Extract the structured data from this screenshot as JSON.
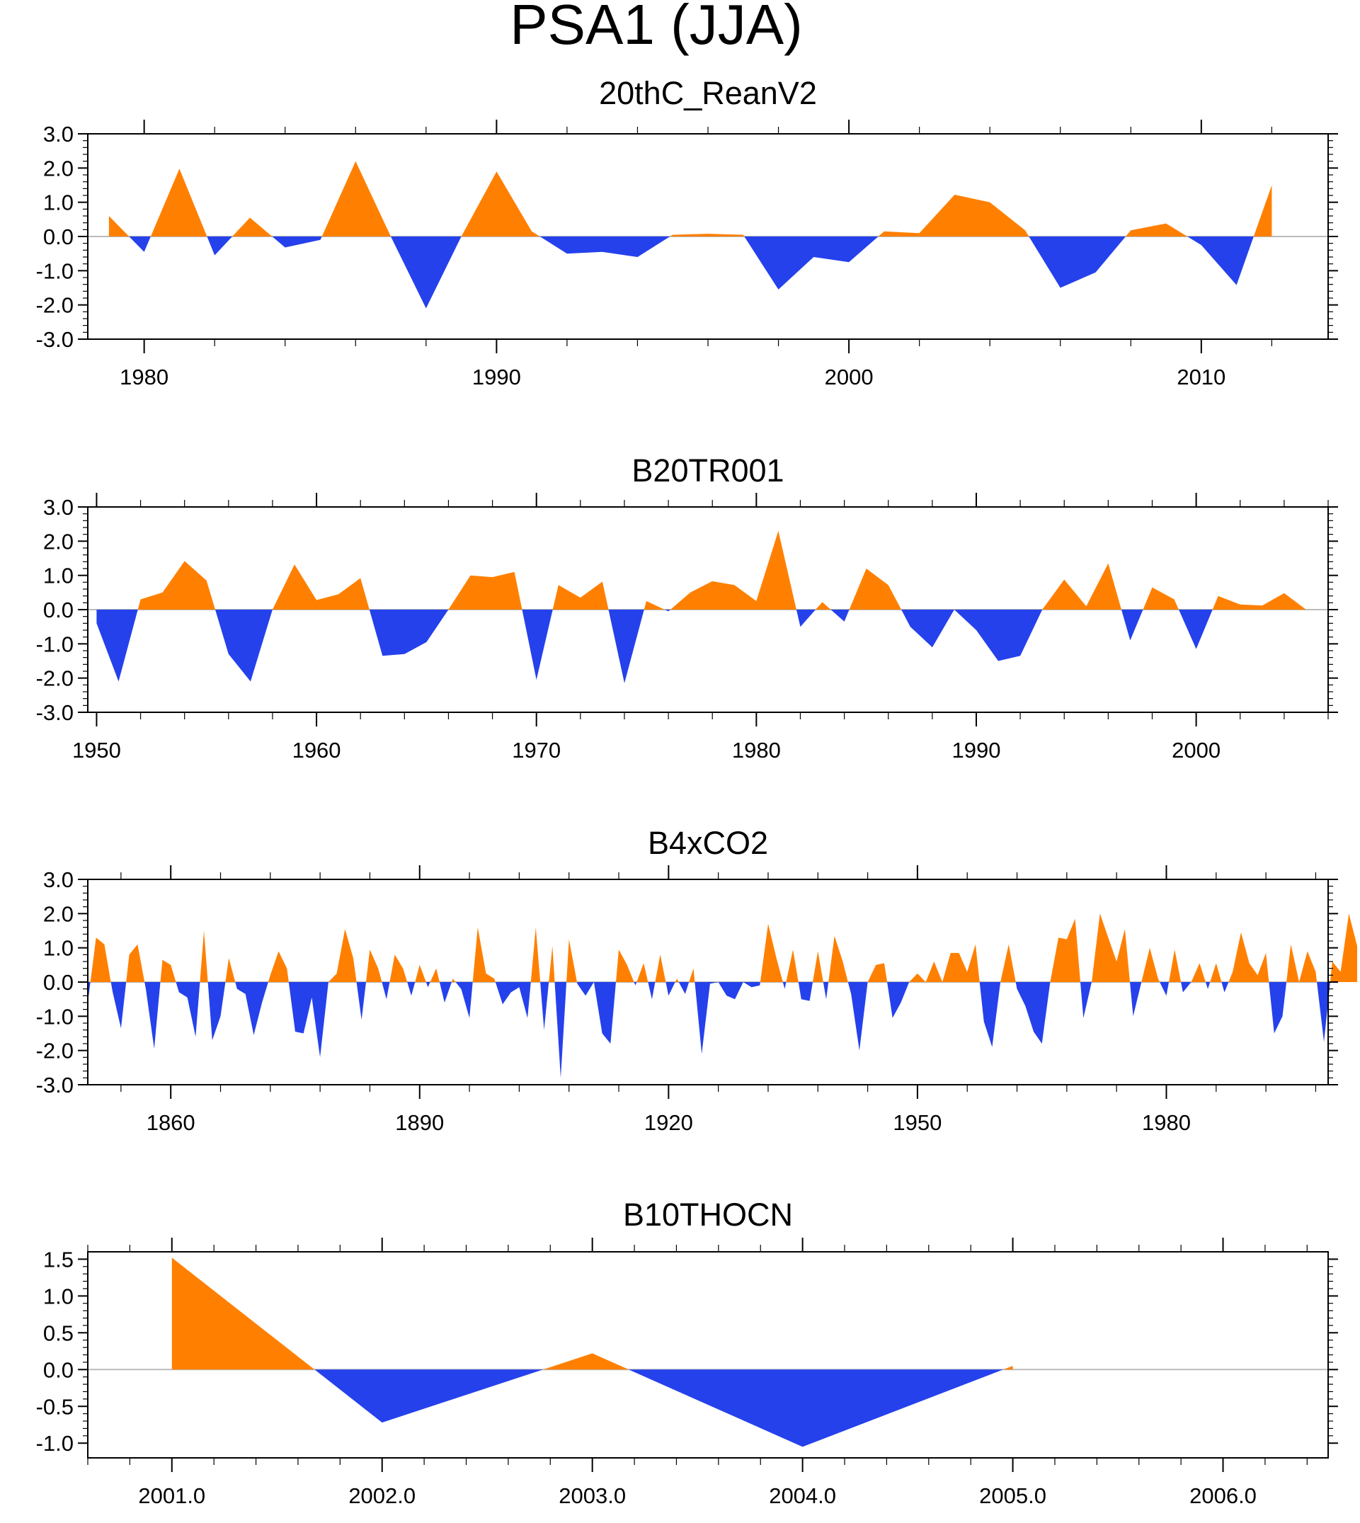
{
  "title": "PSA1 (JJA)",
  "colors": {
    "positive": "#FF8000",
    "negative": "#2541EC",
    "axis": "#000000",
    "zero_line": "#BBBBBB"
  },
  "chart_data": [
    {
      "type": "area",
      "title": "20thC_ReanV2",
      "xlim": [
        1978.4,
        2013.6
      ],
      "ylim": [
        -3.0,
        3.0
      ],
      "yticks": [
        3.0,
        2.0,
        1.0,
        0.0,
        -1.0,
        -2.0,
        -3.0
      ],
      "ytick_labels": [
        "3.0",
        "2.0",
        "1.0",
        "0.0",
        "-1.0",
        "-2.0",
        "-3.0"
      ],
      "xticks": [
        1980,
        1990,
        2000,
        2010
      ],
      "xtick_labels": [
        "1980",
        "1990",
        "2000",
        "2010"
      ],
      "x": [
        1979,
        1980,
        1981,
        1982,
        1983,
        1984,
        1985,
        1986,
        1987,
        1988,
        1989,
        1990,
        1991,
        1992,
        1993,
        1994,
        1995,
        1996,
        1997,
        1998,
        1999,
        2000,
        2001,
        2002,
        2003,
        2004,
        2005,
        2006,
        2007,
        2008,
        2009,
        2010,
        2011,
        2012
      ],
      "values": [
        0.6,
        -0.45,
        1.98,
        -0.55,
        0.55,
        -0.32,
        -0.1,
        2.2,
        0.0,
        -2.1,
        0.0,
        1.9,
        0.15,
        -0.5,
        -0.45,
        -0.6,
        0.05,
        0.08,
        0.05,
        -1.55,
        -0.6,
        -0.75,
        0.15,
        0.1,
        1.22,
        1.0,
        0.18,
        -1.5,
        -1.05,
        0.18,
        0.38,
        -0.25,
        -1.42,
        1.5
      ]
    },
    {
      "type": "area",
      "title": "B20TR001",
      "xlim": [
        1949.6,
        2006.0
      ],
      "ylim": [
        -3.0,
        3.0
      ],
      "yticks": [
        3.0,
        2.0,
        1.0,
        0.0,
        -1.0,
        -2.0,
        -3.0
      ],
      "ytick_labels": [
        "3.0",
        "2.0",
        "1.0",
        "0.0",
        "-1.0",
        "-2.0",
        "-3.0"
      ],
      "xticks": [
        1950,
        1960,
        1970,
        1980,
        1990,
        2000
      ],
      "xtick_labels": [
        "1950",
        "1960",
        "1970",
        "1980",
        "1990",
        "2000"
      ],
      "x": [
        1950,
        1951,
        1952,
        1953,
        1954,
        1955,
        1956,
        1957,
        1958,
        1959,
        1960,
        1961,
        1962,
        1963,
        1964,
        1965,
        1966,
        1967,
        1968,
        1969,
        1970,
        1971,
        1972,
        1973,
        1974,
        1975,
        1976,
        1977,
        1978,
        1979,
        1980,
        1981,
        1982,
        1983,
        1984,
        1985,
        1986,
        1987,
        1988,
        1989,
        1990,
        1991,
        1992,
        1993,
        1994,
        1995,
        1996,
        1997,
        1998,
        1999,
        2000,
        2001,
        2002,
        2003,
        2004,
        2005
      ],
      "values": [
        -0.4,
        -2.1,
        0.3,
        0.5,
        1.42,
        0.85,
        -1.3,
        -2.1,
        0.0,
        1.32,
        0.28,
        0.45,
        0.92,
        -1.35,
        -1.3,
        -0.95,
        0.0,
        1.0,
        0.95,
        1.1,
        -2.05,
        0.72,
        0.35,
        0.82,
        -2.15,
        0.25,
        -0.05,
        0.5,
        0.83,
        0.72,
        0.25,
        2.3,
        -0.5,
        0.22,
        -0.35,
        1.2,
        0.72,
        -0.5,
        -1.1,
        0.0,
        -0.6,
        -1.5,
        -1.35,
        0.0,
        0.88,
        0.1,
        1.35,
        -0.9,
        0.65,
        0.3,
        -1.15,
        0.4,
        0.15,
        0.12,
        0.48,
        0.0
      ]
    },
    {
      "type": "area",
      "title": "B4xCO2",
      "xlim": [
        1850,
        1999.5
      ],
      "ylim": [
        -3.0,
        3.0
      ],
      "yticks": [
        3.0,
        2.0,
        1.0,
        0.0,
        -1.0,
        -2.0,
        -3.0
      ],
      "ytick_labels": [
        "3.0",
        "2.0",
        "1.0",
        "0.0",
        "-1.0",
        "-2.0",
        "-3.0"
      ],
      "xticks": [
        1860,
        1890,
        1920,
        1950,
        1980
      ],
      "xtick_labels": [
        "1860",
        "1890",
        "1920",
        "1950",
        "1980"
      ],
      "x_start": 1850,
      "values": [
        -0.6,
        1.3,
        1.1,
        -0.3,
        -1.35,
        0.8,
        1.1,
        -0.2,
        -1.95,
        0.65,
        0.5,
        -0.3,
        -0.45,
        -1.6,
        1.5,
        -1.7,
        -1.0,
        0.7,
        -0.2,
        -0.35,
        -1.55,
        -0.6,
        0.2,
        0.9,
        0.4,
        -1.45,
        -1.5,
        -0.45,
        -2.2,
        0.0,
        0.25,
        1.55,
        0.7,
        -1.1,
        0.95,
        0.4,
        -0.5,
        0.8,
        0.4,
        -0.4,
        0.5,
        -0.15,
        0.4,
        -0.6,
        0.1,
        -0.2,
        -1.05,
        1.6,
        0.25,
        0.1,
        -0.65,
        -0.3,
        -0.15,
        -1.05,
        1.6,
        -1.4,
        1.05,
        -2.8,
        1.25,
        -0.05,
        -0.4,
        0.0,
        -1.5,
        -1.8,
        0.95,
        0.5,
        -0.1,
        0.55,
        -0.5,
        0.8,
        -0.4,
        0.1,
        -0.35,
        0.4,
        -2.1,
        -0.05,
        0.0,
        -0.4,
        -0.5,
        0.0,
        -0.15,
        -0.1,
        1.7,
        0.7,
        -0.2,
        0.95,
        -0.5,
        -0.55,
        0.9,
        -0.5,
        1.35,
        0.6,
        -0.35,
        -2.0,
        0.0,
        0.5,
        0.55,
        -1.05,
        -0.6,
        0.0,
        0.25,
        0.0,
        0.6,
        0.0,
        0.85,
        0.85,
        0.3,
        1.1,
        -1.15,
        -1.9,
        0.0,
        1.1,
        -0.2,
        -0.7,
        -1.45,
        -1.8,
        0.0,
        1.3,
        1.25,
        1.85,
        -1.05,
        0.0,
        2.0,
        1.3,
        0.6,
        1.55,
        -1.0,
        0.0,
        1.0,
        0.1,
        -0.4,
        0.95,
        -0.3,
        0.0,
        0.55,
        -0.2,
        0.55,
        -0.3,
        0.3,
        1.45,
        0.55,
        0.2,
        0.85,
        -1.5,
        -1.0,
        1.1,
        0.0,
        0.9,
        0.3,
        -1.75,
        0.6,
        0.3,
        2.0,
        1.05
      ]
    },
    {
      "type": "area",
      "title": "B10THOCN",
      "xlim": [
        2000.6,
        2006.5
      ],
      "ylim": [
        -1.2,
        1.6
      ],
      "yticks": [
        1.5,
        1.0,
        0.5,
        0.0,
        -0.5,
        -1.0
      ],
      "ytick_labels": [
        "1.5",
        "1.0",
        "0.5",
        "0.0",
        "-0.5",
        "-1.0"
      ],
      "xticks": [
        2001,
        2002,
        2003,
        2004,
        2005,
        2006
      ],
      "xtick_labels": [
        "2001.0",
        "2002.0",
        "2003.0",
        "2004.0",
        "2005.0",
        "2006.0"
      ],
      "x": [
        2001,
        2002,
        2003,
        2004,
        2005
      ],
      "values": [
        1.52,
        -0.72,
        0.22,
        -1.05,
        0.05
      ]
    }
  ]
}
